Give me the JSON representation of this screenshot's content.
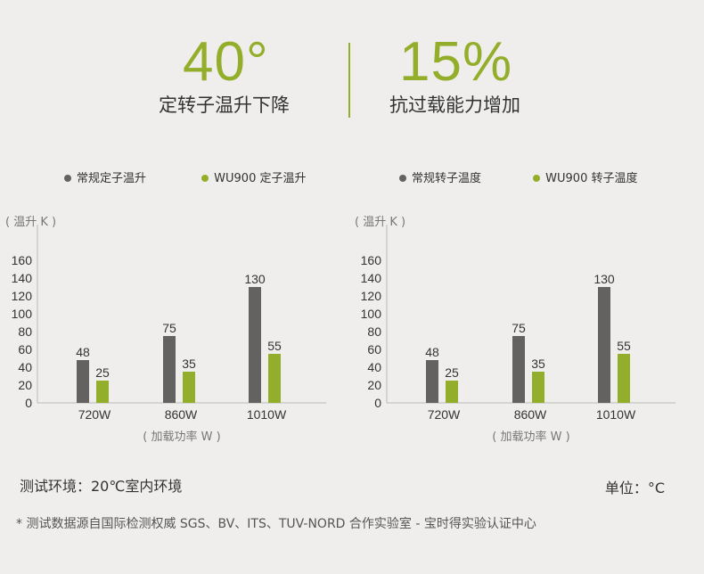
{
  "colors": {
    "accent": "#93ae2b",
    "grey_bar": "#636261",
    "axis": "#b9b9b9",
    "text": "#333333"
  },
  "headline": {
    "left": {
      "value": "40°",
      "caption": "定转子温升下降"
    },
    "right": {
      "value": "15%",
      "caption": "抗过载能力增加"
    }
  },
  "chart_data": [
    {
      "type": "bar",
      "categories": [
        "720W",
        "860W",
        "1010W"
      ],
      "series": [
        {
          "name": "常规定子温升",
          "values": [
            48,
            75,
            130
          ]
        },
        {
          "name": "WU900 定子温升",
          "values": [
            25,
            35,
            55
          ]
        }
      ],
      "ylabel": "( 温升 K )",
      "xlabel": "( 加载功率 W )",
      "yticks": [
        0,
        20,
        40,
        60,
        80,
        100,
        120,
        140,
        160
      ],
      "ylim": [
        0,
        160
      ],
      "legend": "top"
    },
    {
      "type": "bar",
      "categories": [
        "720W",
        "860W",
        "1010W"
      ],
      "series": [
        {
          "name": "常规转子温度",
          "values": [
            48,
            75,
            130
          ]
        },
        {
          "name": "WU900 转子温度",
          "values": [
            25,
            35,
            55
          ]
        }
      ],
      "ylabel": "( 温升 K )",
      "xlabel": "( 加载功率 W )",
      "yticks": [
        0,
        20,
        40,
        60,
        80,
        100,
        120,
        140,
        160
      ],
      "ylim": [
        0,
        160
      ],
      "legend": "top"
    }
  ],
  "footer": {
    "condition": "测试环境：20℃室内环境",
    "unit": "单位：°C",
    "note": "* 测试数据源自国际检测权威 SGS、BV、ITS、TUV-NORD 合作实验室 - 宝时得实验认证中心"
  }
}
